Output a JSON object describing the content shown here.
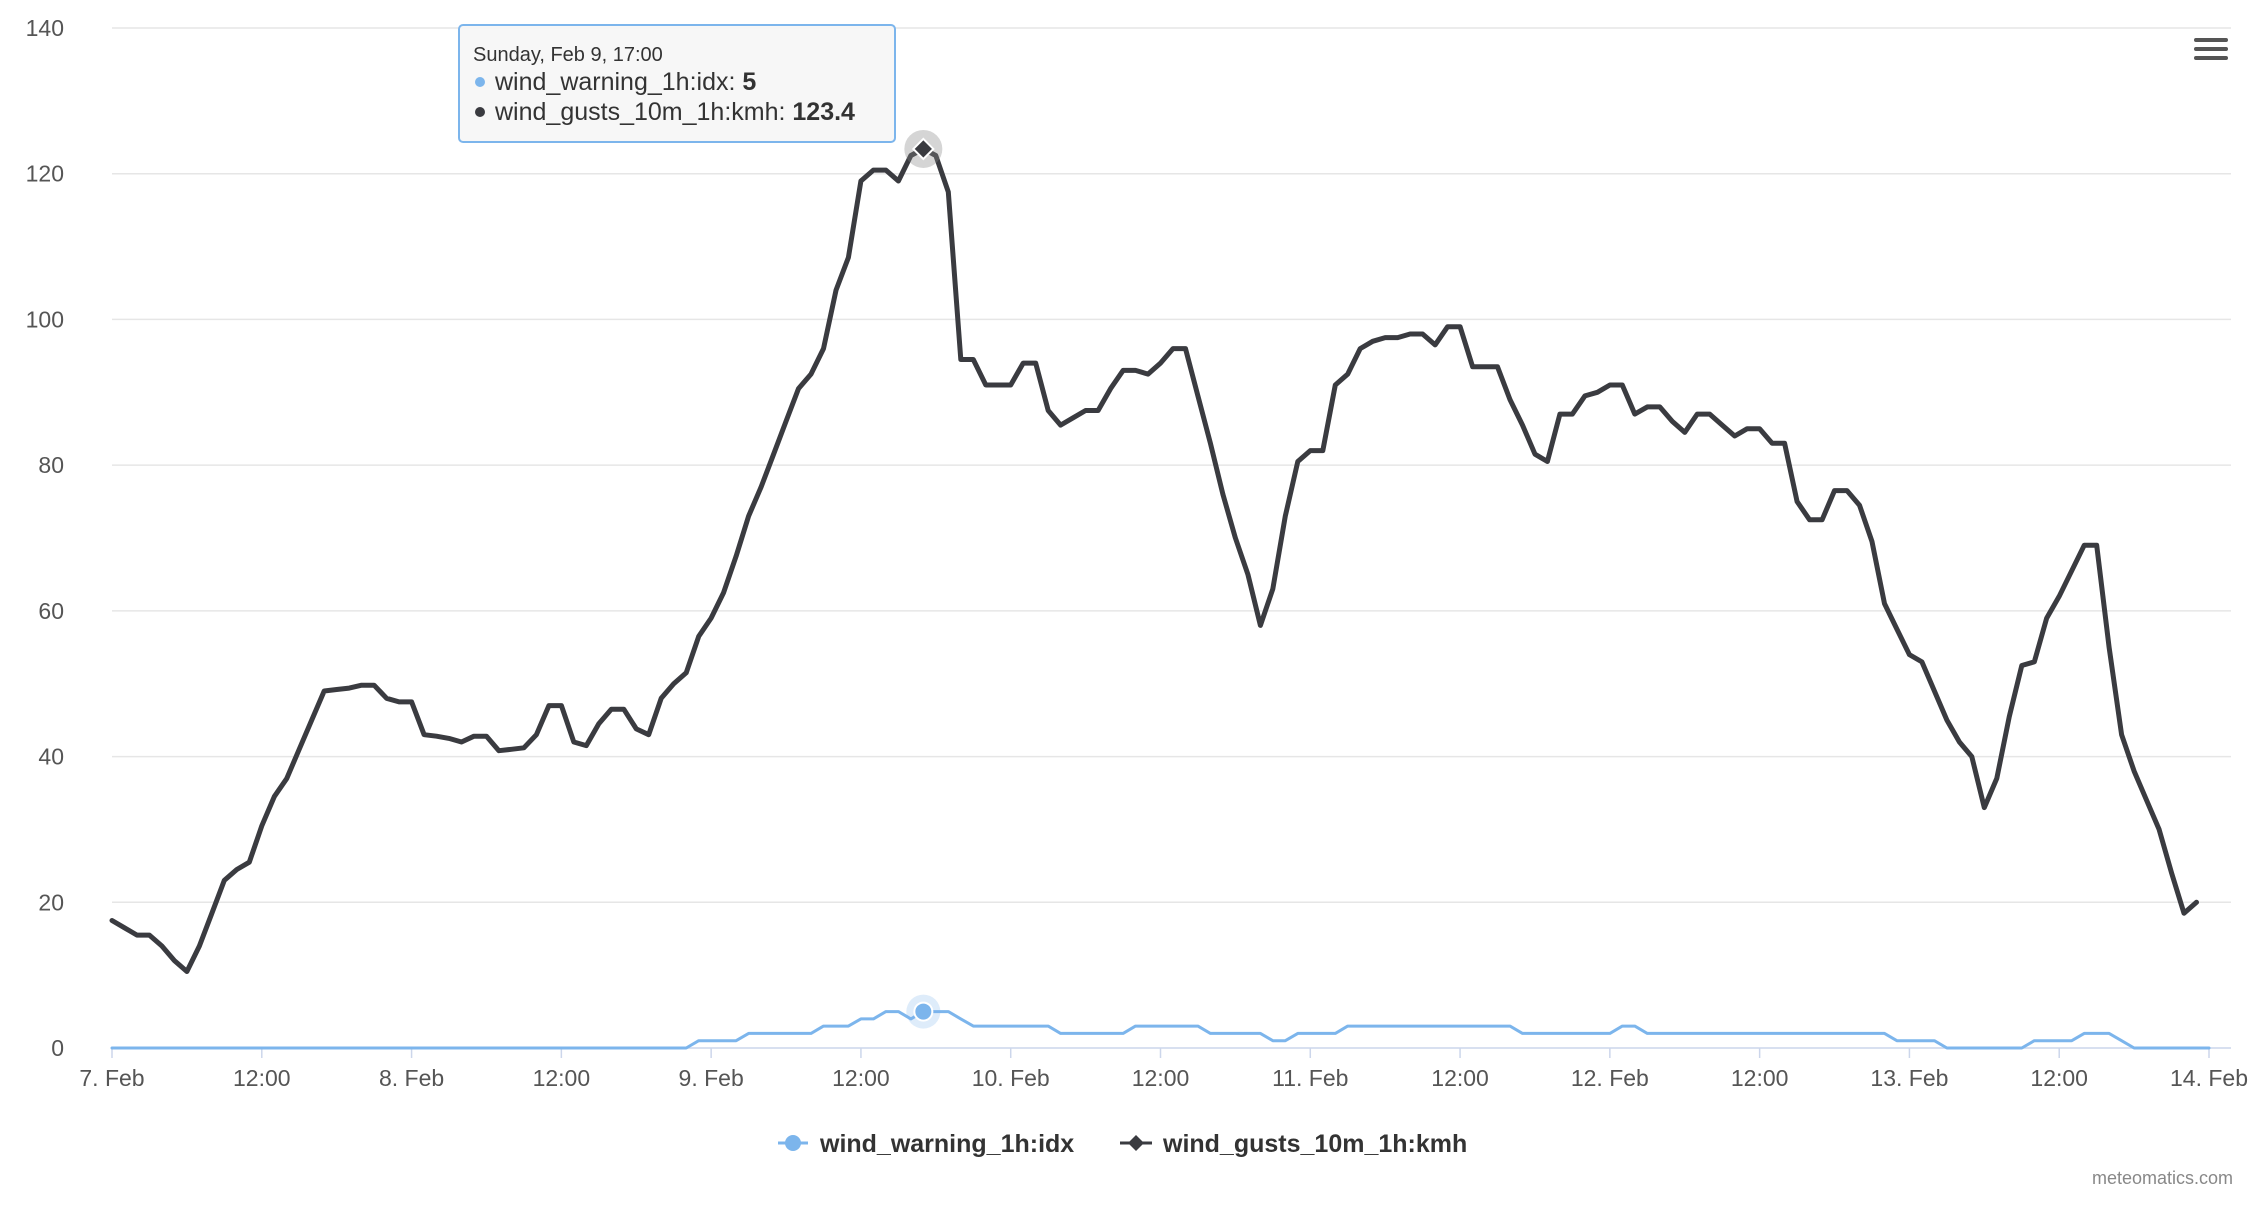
{
  "menu": {
    "icon": "hamburger-menu-icon"
  },
  "credits": "meteomatics.com",
  "tooltip": {
    "header": "Sunday, Feb 9, 17:00",
    "rows": [
      {
        "label": "wind_warning_1h:idx: ",
        "value": "5"
      },
      {
        "label": "wind_gusts_10m_1h:kmh: ",
        "value": "123.4"
      }
    ]
  },
  "chart_data": {
    "type": "line",
    "title": "",
    "xlabel": "",
    "ylabel": "",
    "ylim": [
      0,
      140
    ],
    "y_ticks": [
      0,
      20,
      40,
      60,
      80,
      100,
      120,
      140
    ],
    "x_range_hours": [
      0,
      168
    ],
    "x_ticks": [
      {
        "hour": 0,
        "label": "7. Feb"
      },
      {
        "hour": 12,
        "label": "12:00"
      },
      {
        "hour": 24,
        "label": "8. Feb"
      },
      {
        "hour": 36,
        "label": "12:00"
      },
      {
        "hour": 48,
        "label": "9. Feb"
      },
      {
        "hour": 60,
        "label": "12:00"
      },
      {
        "hour": 72,
        "label": "10. Feb"
      },
      {
        "hour": 84,
        "label": "12:00"
      },
      {
        "hour": 96,
        "label": "11. Feb"
      },
      {
        "hour": 108,
        "label": "12:00"
      },
      {
        "hour": 120,
        "label": "12. Feb"
      },
      {
        "hour": 132,
        "label": "12:00"
      },
      {
        "hour": 144,
        "label": "13. Feb"
      },
      {
        "hour": 156,
        "label": "12:00"
      },
      {
        "hour": 168,
        "label": "14. Feb"
      }
    ],
    "grid": true,
    "legend_position": "bottom-center",
    "highlight_hour": 65,
    "series": [
      {
        "name": "wind_warning_1h:idx",
        "color": "#7cb5ec",
        "marker": "circle",
        "points": [
          [
            0,
            0
          ],
          [
            46,
            0
          ],
          [
            47,
            1
          ],
          [
            50,
            1
          ],
          [
            51,
            2
          ],
          [
            56,
            2
          ],
          [
            57,
            3
          ],
          [
            59,
            3
          ],
          [
            60,
            4
          ],
          [
            61,
            4
          ],
          [
            62,
            5
          ],
          [
            63,
            5
          ],
          [
            64,
            4
          ],
          [
            65,
            5
          ],
          [
            67,
            5
          ],
          [
            68,
            4
          ],
          [
            69,
            3
          ],
          [
            75,
            3
          ],
          [
            76,
            2
          ],
          [
            81,
            2
          ],
          [
            82,
            3
          ],
          [
            87,
            3
          ],
          [
            88,
            2
          ],
          [
            92,
            2
          ],
          [
            93,
            1
          ],
          [
            94,
            1
          ],
          [
            95,
            2
          ],
          [
            98,
            2
          ],
          [
            99,
            3
          ],
          [
            112,
            3
          ],
          [
            113,
            2
          ],
          [
            120,
            2
          ],
          [
            121,
            3
          ],
          [
            122,
            3
          ],
          [
            123,
            2
          ],
          [
            142,
            2
          ],
          [
            143,
            1
          ],
          [
            146,
            1
          ],
          [
            147,
            0
          ],
          [
            153,
            0
          ],
          [
            154,
            1
          ],
          [
            157,
            1
          ],
          [
            158,
            2
          ],
          [
            160,
            2
          ],
          [
            161,
            1
          ],
          [
            162,
            0
          ],
          [
            168,
            0
          ]
        ]
      },
      {
        "name": "wind_gusts_10m_1h:kmh",
        "color": "#3a3b40",
        "marker": "diamond",
        "points": [
          [
            0,
            17.5
          ],
          [
            1,
            16.5
          ],
          [
            2,
            15.5
          ],
          [
            3,
            15.5
          ],
          [
            4,
            14
          ],
          [
            5,
            12
          ],
          [
            6,
            10.5
          ],
          [
            7,
            14
          ],
          [
            8,
            18.5
          ],
          [
            9,
            23
          ],
          [
            10,
            24.5
          ],
          [
            11,
            25.5
          ],
          [
            12,
            30.5
          ],
          [
            13,
            34.5
          ],
          [
            14,
            37
          ],
          [
            15,
            41
          ],
          [
            16,
            45
          ],
          [
            17,
            49
          ],
          [
            18,
            49.2
          ],
          [
            19,
            49.4
          ],
          [
            20,
            49.8
          ],
          [
            21,
            49.8
          ],
          [
            22,
            48
          ],
          [
            23,
            47.5
          ],
          [
            24,
            47.5
          ],
          [
            25,
            43
          ],
          [
            26,
            42.8
          ],
          [
            27,
            42.5
          ],
          [
            28,
            42
          ],
          [
            29,
            42.8
          ],
          [
            30,
            42.8
          ],
          [
            31,
            40.8
          ],
          [
            32,
            41
          ],
          [
            33,
            41.2
          ],
          [
            34,
            43
          ],
          [
            35,
            47
          ],
          [
            36,
            47
          ],
          [
            37,
            42
          ],
          [
            38,
            41.5
          ],
          [
            39,
            44.5
          ],
          [
            40,
            46.5
          ],
          [
            41,
            46.5
          ],
          [
            42,
            43.8
          ],
          [
            43,
            43
          ],
          [
            44,
            48
          ],
          [
            45,
            50
          ],
          [
            46,
            51.5
          ],
          [
            47,
            56.5
          ],
          [
            48,
            59
          ],
          [
            49,
            62.5
          ],
          [
            50,
            67.5
          ],
          [
            51,
            73
          ],
          [
            52,
            77
          ],
          [
            53,
            81.5
          ],
          [
            54,
            86
          ],
          [
            55,
            90.5
          ],
          [
            56,
            92.5
          ],
          [
            57,
            96
          ],
          [
            58,
            104
          ],
          [
            59,
            108.5
          ],
          [
            60,
            119
          ],
          [
            61,
            120.5
          ],
          [
            62,
            120.5
          ],
          [
            63,
            119
          ],
          [
            64,
            122.5
          ],
          [
            65,
            123.4
          ],
          [
            66,
            122.5
          ],
          [
            67,
            117.5
          ],
          [
            68,
            94.5
          ],
          [
            69,
            94.5
          ],
          [
            70,
            91
          ],
          [
            71,
            91
          ],
          [
            72,
            91
          ],
          [
            73,
            94
          ],
          [
            74,
            94
          ],
          [
            75,
            87.5
          ],
          [
            76,
            85.5
          ],
          [
            77,
            86.5
          ],
          [
            78,
            87.5
          ],
          [
            79,
            87.5
          ],
          [
            80,
            90.5
          ],
          [
            81,
            93
          ],
          [
            82,
            93
          ],
          [
            83,
            92.5
          ],
          [
            84,
            94
          ],
          [
            85,
            96
          ],
          [
            86,
            96
          ],
          [
            87,
            89.5
          ],
          [
            88,
            83
          ],
          [
            89,
            76
          ],
          [
            90,
            70
          ],
          [
            91,
            65
          ],
          [
            92,
            58
          ],
          [
            93,
            63
          ],
          [
            94,
            73
          ],
          [
            95,
            80.5
          ],
          [
            96,
            82
          ],
          [
            97,
            82
          ],
          [
            98,
            91
          ],
          [
            99,
            92.5
          ],
          [
            100,
            96
          ],
          [
            101,
            97
          ],
          [
            102,
            97.5
          ],
          [
            103,
            97.5
          ],
          [
            104,
            98
          ],
          [
            105,
            98
          ],
          [
            106,
            96.5
          ],
          [
            107,
            99
          ],
          [
            108,
            99
          ],
          [
            109,
            93.5
          ],
          [
            110,
            93.5
          ],
          [
            111,
            93.5
          ],
          [
            112,
            89
          ],
          [
            113,
            85.5
          ],
          [
            114,
            81.5
          ],
          [
            115,
            80.5
          ],
          [
            116,
            87
          ],
          [
            117,
            87
          ],
          [
            118,
            89.5
          ],
          [
            119,
            90
          ],
          [
            120,
            91
          ],
          [
            121,
            91
          ],
          [
            122,
            87
          ],
          [
            123,
            88
          ],
          [
            124,
            88
          ],
          [
            125,
            86
          ],
          [
            126,
            84.5
          ],
          [
            127,
            87
          ],
          [
            128,
            87
          ],
          [
            129,
            85.5
          ],
          [
            130,
            84
          ],
          [
            131,
            85
          ],
          [
            132,
            85
          ],
          [
            133,
            83
          ],
          [
            134,
            83
          ],
          [
            135,
            75
          ],
          [
            136,
            72.5
          ],
          [
            137,
            72.5
          ],
          [
            138,
            76.5
          ],
          [
            139,
            76.5
          ],
          [
            140,
            74.5
          ],
          [
            141,
            69.5
          ],
          [
            142,
            61
          ],
          [
            143,
            57.5
          ],
          [
            144,
            54
          ],
          [
            145,
            53
          ],
          [
            146,
            49
          ],
          [
            147,
            45
          ],
          [
            148,
            42
          ],
          [
            149,
            40
          ],
          [
            150,
            33
          ],
          [
            151,
            37
          ],
          [
            152,
            45.5
          ],
          [
            153,
            52.5
          ],
          [
            154,
            53
          ],
          [
            155,
            59
          ],
          [
            156,
            62
          ],
          [
            157,
            65.5
          ],
          [
            158,
            69
          ],
          [
            159,
            69
          ],
          [
            160,
            55
          ],
          [
            161,
            43
          ],
          [
            162,
            38
          ],
          [
            163,
            34
          ],
          [
            164,
            30
          ],
          [
            165,
            24
          ],
          [
            166,
            18.5
          ],
          [
            167,
            20
          ]
        ]
      }
    ]
  }
}
